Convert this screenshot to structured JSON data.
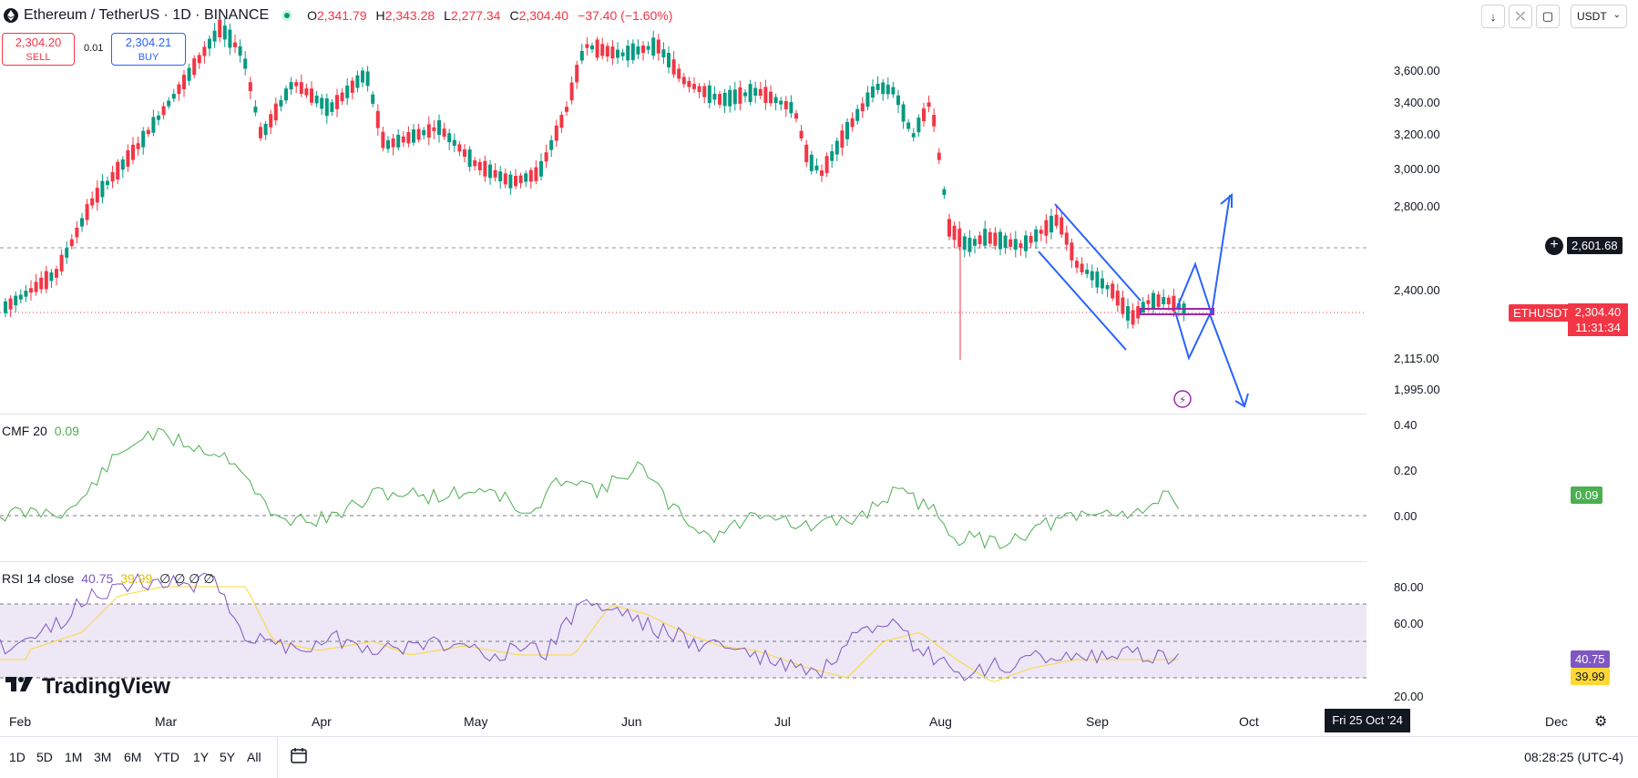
{
  "header": {
    "title": "Ethereum / TetherUS · 1D · BINANCE",
    "open_label": "O",
    "open": "2,341.79",
    "high_label": "H",
    "high": "2,343.28",
    "low_label": "L",
    "low": "2,277.34",
    "close_label": "C",
    "close": "2,304.40",
    "change": "−37.40 (−1.60%)"
  },
  "trade": {
    "sell_price": "2,304.20",
    "sell_label": "SELL",
    "buy_price": "2,304.21",
    "buy_label": "BUY",
    "spread": "0.01"
  },
  "toolbar": {
    "currency": "USDT"
  },
  "price_axis": {
    "ticks": [
      "3,600.00",
      "3,400.00",
      "3,200.00",
      "3,000.00",
      "2,800.00",
      "2,400.00",
      "2,115.00",
      "1,995.00"
    ],
    "crosshair_price": "2,601.68",
    "symbol_tag": "ETHUSDT",
    "last_price": "2,304.40",
    "countdown": "11:31:34"
  },
  "cmf": {
    "label": "CMF 20",
    "value": "0.09",
    "ticks": [
      "0.40",
      "0.20",
      "0.00"
    ],
    "tag": "0.09"
  },
  "rsi": {
    "label": "RSI 14 close",
    "value": "40.75",
    "ma_value": "39.99",
    "extras": "∅ ∅ ∅ ∅",
    "ticks": [
      "80.00",
      "60.00",
      "20.00"
    ],
    "tag_rsi": "40.75",
    "tag_ma": "39.99"
  },
  "time_axis": {
    "months": [
      "Feb",
      "Mar",
      "Apr",
      "May",
      "Jun",
      "Jul",
      "Aug",
      "Sep",
      "Oct",
      "Dec"
    ],
    "crosshair_date": "Fri 25 Oct '24"
  },
  "bottom_bar": {
    "ranges": [
      "1D",
      "5D",
      "1M",
      "3M",
      "6M",
      "YTD",
      "1Y",
      "5Y",
      "All"
    ],
    "clock": "08:28:25 (UTC-4)"
  },
  "logo": {
    "text": "TradingView"
  },
  "colors": {
    "up": "#089981",
    "down": "#f23645",
    "drawing": "#2962ff",
    "cmf": "#4caf50",
    "rsi": "#7e57c2",
    "rsi_ma": "#fdd835",
    "rsi_band": "#ede7f6",
    "price_tag": "#f23645"
  }
}
